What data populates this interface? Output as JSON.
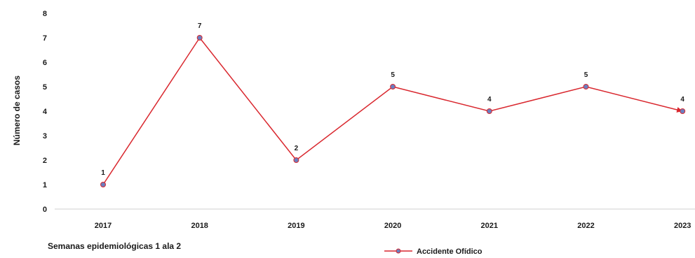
{
  "chart_data": {
    "type": "line",
    "categories": [
      "2017",
      "2018",
      "2019",
      "2020",
      "2021",
      "2022",
      "2023"
    ],
    "series": [
      {
        "name": "Accidente Ofídico",
        "values": [
          1,
          7,
          2,
          5,
          4,
          5,
          4
        ]
      }
    ],
    "data_labels": [
      "1",
      "7",
      "2",
      "5",
      "4",
      "5",
      "4"
    ],
    "ylabel": "Número de casos",
    "xlabel": "",
    "ylim": [
      0,
      8
    ],
    "yticks": [
      "0",
      "1",
      "2",
      "3",
      "4",
      "5",
      "6",
      "7",
      "8"
    ],
    "grid": false,
    "legend_position": "bottom-center",
    "note": "Semanas epidemiológicas 1 ala 2",
    "colors": {
      "line": "#d9272e",
      "marker_fill": "#6a7fc0",
      "marker_edge": "#d9272e",
      "axis": "#d0d0d0"
    }
  }
}
